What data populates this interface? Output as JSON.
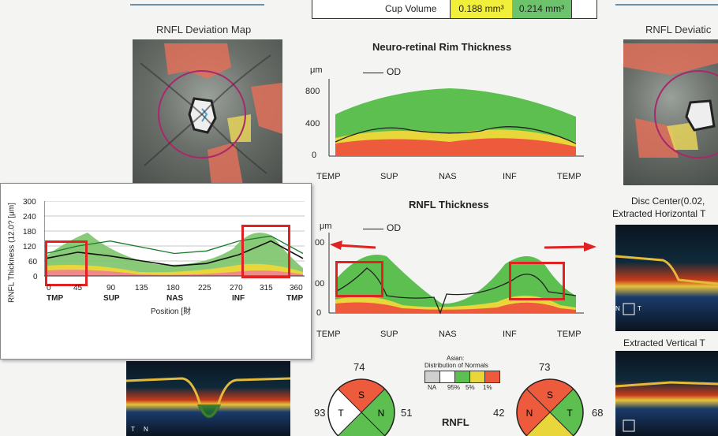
{
  "cup_volume": {
    "label": "Cup Volume",
    "v1": "0.188 mm³",
    "v2": "0.214 mm³",
    "v1_color": "#f2ef3a",
    "v2_color": "#6dc36b"
  },
  "left_map_title": "RNFL Deviation Map",
  "right_map_title": "RNFL Deviatic",
  "rim_chart": {
    "title": "Neuro-retinal Rim Thickness",
    "unit": "μm",
    "legend": "OD",
    "yticks": [
      "800",
      "400",
      "0"
    ],
    "xticks": [
      "TEMP",
      "SUP",
      "NAS",
      "INF",
      "TEMP"
    ]
  },
  "rnfl_chart": {
    "title": "RNFL Thickness",
    "unit": "μm",
    "legend": "OD",
    "yticks": [
      "00",
      "00",
      "0"
    ],
    "xticks": [
      "TEMP",
      "SUP",
      "NAS",
      "INF",
      "TEMP"
    ]
  },
  "overlay_chart": {
    "ylabel": "RNFL Thickness (12.0? [μm]",
    "xlabel": "Position [財",
    "yticks": [
      "300",
      "240",
      "180",
      "120",
      "60",
      "0"
    ],
    "xticks": [
      "0",
      "45",
      "90",
      "135",
      "180",
      "225",
      "270",
      "315",
      "360"
    ],
    "xsectors": [
      "TMP",
      "SUP",
      "NAS",
      "INF",
      "TMP"
    ]
  },
  "right_panel": {
    "disc_center": "Disc Center(0.02,",
    "horizontal": "Extracted Horizontal T",
    "vertical": "Extracted Vertical T"
  },
  "clock_left": {
    "top": "74",
    "left": "93",
    "right": "51",
    "sectors": [
      "S",
      "T",
      "N",
      "I"
    ]
  },
  "clock_right": {
    "top": "73",
    "left": "42",
    "right": "68",
    "sectors": [
      "S",
      "N",
      "T",
      "I"
    ]
  },
  "legend_box": {
    "title1": "Asian:",
    "title2": "Distribution of Normals",
    "labels": [
      "NA",
      "95%",
      "5%",
      "1%"
    ]
  },
  "rnfl_label": "RNFL",
  "oct_marks": {
    "left": "T",
    "right": "N",
    "h_left": "N",
    "h_right": "T"
  },
  "chart_data": {
    "type": "line",
    "x": [
      0,
      45,
      90,
      135,
      180,
      225,
      270,
      315,
      360
    ],
    "xlabel": "Position [財",
    "ylabel": "RNFL Thickness (12.0? [μm]",
    "ylim": [
      0,
      300
    ],
    "series": [
      {
        "values": [
          70,
          95,
          80,
          60,
          40,
          50,
          85,
          140,
          70
        ]
      },
      {
        "values": [
          90,
          120,
          140,
          115,
          90,
          100,
          140,
          160,
          90
        ]
      }
    ]
  }
}
